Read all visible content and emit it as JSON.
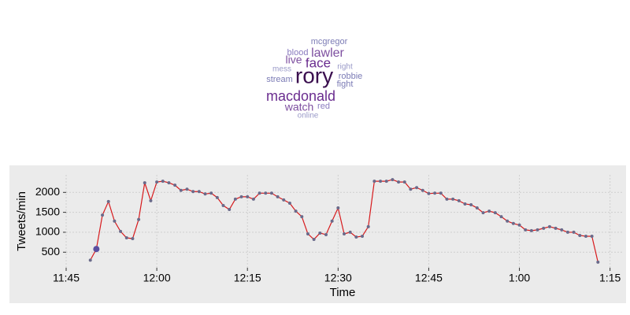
{
  "wordcloud": {
    "words": [
      "mcgregor",
      "blood",
      "lawler",
      "live",
      "face",
      "right",
      "mess",
      "rory",
      "robbie",
      "stream",
      "fight",
      "macdonald",
      "watch",
      "red",
      "online"
    ]
  },
  "chart_data": {
    "type": "line",
    "x_label": "Time",
    "y_label": "Tweets/min",
    "color": "#d7191c",
    "marker_color": "#6a6a8a",
    "highlight_index": 1,
    "highlight_color": "#5b4fa0",
    "grid": true,
    "x": [
      "11:49",
      "11:50",
      "11:51",
      "11:52",
      "11:53",
      "11:54",
      "11:55",
      "11:56",
      "11:57",
      "11:58",
      "11:59",
      "12:00",
      "12:01",
      "12:02",
      "12:03",
      "12:04",
      "12:05",
      "12:06",
      "12:07",
      "12:08",
      "12:09",
      "12:10",
      "12:11",
      "12:12",
      "12:13",
      "12:14",
      "12:15",
      "12:16",
      "12:17",
      "12:18",
      "12:19",
      "12:20",
      "12:21",
      "12:22",
      "12:23",
      "12:24",
      "12:25",
      "12:26",
      "12:27",
      "12:28",
      "12:29",
      "12:30",
      "12:31",
      "12:32",
      "12:33",
      "12:34",
      "12:35",
      "12:36",
      "12:37",
      "12:38",
      "12:39",
      "12:40",
      "12:41",
      "12:42",
      "12:43",
      "12:44",
      "12:45",
      "12:46",
      "12:47",
      "12:48",
      "12:49",
      "12:50",
      "12:51",
      "12:52",
      "12:53",
      "12:54",
      "12:55",
      "12:56",
      "12:57",
      "12:58",
      "12:59",
      "1:00",
      "1:01",
      "1:02",
      "1:03",
      "1:04",
      "1:05",
      "1:06",
      "1:07",
      "1:08",
      "1:09",
      "1:10",
      "1:11",
      "1:12",
      "1:13"
    ],
    "values": [
      300,
      580,
      1430,
      1770,
      1280,
      1020,
      860,
      840,
      1320,
      2240,
      1790,
      2260,
      2280,
      2240,
      2180,
      2050,
      2080,
      2020,
      2020,
      1960,
      1980,
      1870,
      1670,
      1570,
      1830,
      1890,
      1890,
      1830,
      1980,
      1980,
      1980,
      1890,
      1810,
      1730,
      1530,
      1390,
      960,
      820,
      980,
      940,
      1280,
      1610,
      960,
      1000,
      880,
      900,
      1140,
      2280,
      2280,
      2280,
      2320,
      2260,
      2260,
      2080,
      2120,
      2050,
      1970,
      1980,
      1980,
      1830,
      1830,
      1790,
      1710,
      1690,
      1610,
      1490,
      1530,
      1490,
      1390,
      1280,
      1220,
      1180,
      1060,
      1040,
      1060,
      1100,
      1140,
      1100,
      1060,
      1000,
      1000,
      920,
      900,
      900,
      250
    ],
    "xlim": [
      "11:45",
      "1:17"
    ],
    "xticks": [
      "11:45",
      "12:00",
      "12:15",
      "12:30",
      "12:45",
      "1:00",
      "1:15"
    ],
    "ylim": [
      110,
      2440
    ],
    "yticks": [
      500,
      1000,
      1500,
      2000
    ]
  }
}
